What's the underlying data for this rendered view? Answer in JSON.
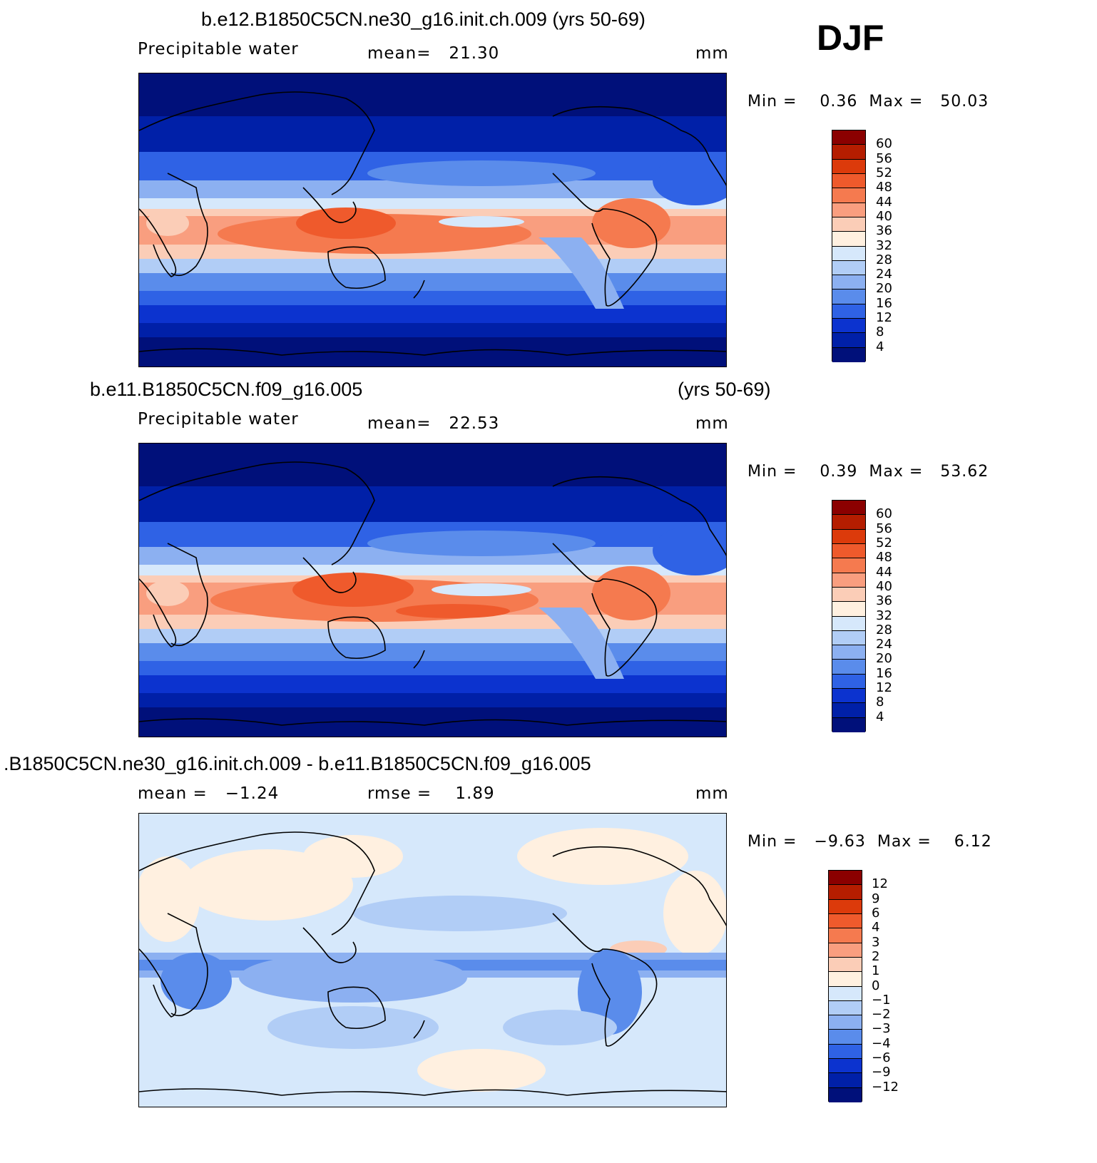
{
  "season": "DJF",
  "panels": [
    {
      "title": "b.e12.B1850C5CN.ne30_g16.init.ch.009 (yrs 50-69)",
      "title_right": "",
      "variable": "Precipitable water",
      "stat_text": "mean=   21.30",
      "units": "mm",
      "minmax": "Min =    0.36  Max =   50.03",
      "colorbar_labels": [
        "60",
        "56",
        "52",
        "48",
        "44",
        "40",
        "36",
        "32",
        "28",
        "24",
        "20",
        "16",
        "12",
        "8",
        "4"
      ],
      "colorbar_colors": [
        "#8b0000",
        "#b51d00",
        "#dc3a0b",
        "#ef5a2c",
        "#f57a4f",
        "#f99e7f",
        "#fbcdb7",
        "#fff0e0",
        "#d6e8fb",
        "#b1cdf6",
        "#8cb0f1",
        "#5a8ceb",
        "#2f62e5",
        "#0c33cf",
        "#0020a8",
        "#00107a"
      ]
    },
    {
      "title": "b.e11.B1850C5CN.f09_g16.005",
      "title_right": "(yrs 50-69)",
      "variable": "Precipitable water",
      "stat_text": "mean=   22.53",
      "units": "mm",
      "minmax": "Min =    0.39  Max =   53.62",
      "colorbar_labels": [
        "60",
        "56",
        "52",
        "48",
        "44",
        "40",
        "36",
        "32",
        "28",
        "24",
        "20",
        "16",
        "12",
        "8",
        "4"
      ],
      "colorbar_colors": [
        "#8b0000",
        "#b51d00",
        "#dc3a0b",
        "#ef5a2c",
        "#f57a4f",
        "#f99e7f",
        "#fbcdb7",
        "#fff0e0",
        "#d6e8fb",
        "#b1cdf6",
        "#8cb0f1",
        "#5a8ceb",
        "#2f62e5",
        "#0c33cf",
        "#0020a8",
        "#00107a"
      ]
    },
    {
      "title": ".B1850C5CN.ne30_g16.init.ch.009 - b.e11.B1850C5CN.f09_g16.005",
      "title_right": "",
      "variable": "mean =   −1.24",
      "stat_text": "rmse =    1.89",
      "units": "mm",
      "minmax": "Min =   −9.63  Max =    6.12",
      "colorbar_labels": [
        "12",
        "9",
        "6",
        "4",
        "3",
        "2",
        "1",
        "0",
        "−1",
        "−2",
        "−3",
        "−4",
        "−6",
        "−9",
        "−12"
      ],
      "colorbar_colors": [
        "#8b0000",
        "#b51d00",
        "#dc3a0b",
        "#ef5a2c",
        "#f57a4f",
        "#f99e7f",
        "#fbcdb7",
        "#fff0e0",
        "#d6e8fb",
        "#b1cdf6",
        "#8cb0f1",
        "#5a8ceb",
        "#2f62e5",
        "#0c33cf",
        "#0020a8",
        "#00107a"
      ]
    }
  ],
  "map_colors": {
    "ocean_dark": "#00107a",
    "deep_blue": "#0020a8",
    "blue": "#0c33cf",
    "mid_blue": "#2f62e5",
    "light_blue": "#5a8ceb",
    "pale_blue": "#8cb0f1",
    "very_pale_blue": "#b1cdf6",
    "ice_blue": "#d6e8fb",
    "cream": "#fff0e0",
    "peach": "#fbcdb7",
    "salmon": "#f99e7f",
    "orange": "#f57a4f",
    "red_orange": "#ef5a2c",
    "red": "#dc3a0b"
  }
}
